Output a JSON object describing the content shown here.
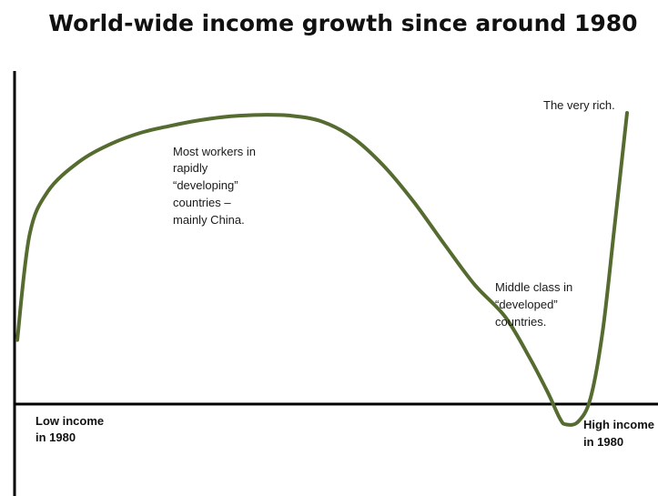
{
  "chart_data": {
    "type": "line",
    "title": "World-wide income growth since around 1980",
    "xlabel": "",
    "ylabel": "",
    "x_axis_labels": {
      "left": [
        "Low income",
        "in 1980"
      ],
      "right": [
        "High income",
        "in 1980"
      ]
    },
    "grid": false,
    "legend": "none",
    "line_color": "#556b2f",
    "series": [
      {
        "x": [
          0,
          2,
          5,
          10,
          15,
          20,
          25,
          30,
          35,
          40,
          45,
          50,
          55,
          60,
          65,
          70,
          75,
          80,
          84,
          87,
          89,
          90,
          92,
          94,
          96,
          98,
          100
        ],
        "values": [
          22,
          58,
          73,
          83,
          89,
          93,
          95.5,
          97.5,
          98.8,
          99.3,
          99,
          97,
          91.5,
          82,
          69.5,
          55,
          41,
          30,
          16,
          4,
          -5,
          -7,
          -6,
          2,
          25,
          62,
          100
        ]
      }
    ],
    "annotations": [
      {
        "lines": [
          "The very rich."
        ]
      },
      {
        "lines": [
          "Most workers  in",
          "rapidly",
          "“developing”",
          "countries –",
          "mainly China."
        ]
      },
      {
        "lines": [
          "Middle class in",
          "“developed”",
          "countries."
        ]
      }
    ]
  }
}
